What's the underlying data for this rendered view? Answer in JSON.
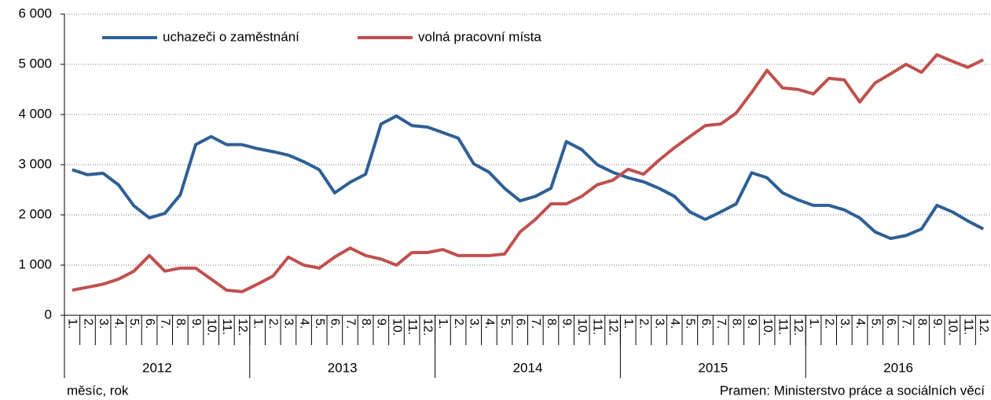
{
  "chart_data": {
    "type": "line",
    "categories": [
      "1.",
      "2.",
      "3.",
      "4.",
      "5.",
      "6.",
      "7.",
      "8.",
      "9.",
      "10.",
      "11.",
      "12.",
      "1.",
      "2.",
      "3.",
      "4.",
      "5.",
      "6.",
      "7.",
      "8.",
      "9.",
      "10.",
      "11.",
      "12.",
      "1.",
      "2.",
      "3.",
      "4.",
      "5.",
      "6.",
      "7.",
      "8.",
      "9.",
      "10.",
      "11.",
      "12.",
      "1.",
      "2.",
      "3.",
      "4.",
      "5.",
      "6.",
      "7.",
      "8.",
      "9.",
      "10.",
      "11.",
      "12.",
      "1.",
      "2.",
      "3.",
      "4.",
      "5.",
      "6.",
      "7.",
      "8.",
      "9.",
      "10.",
      "11.",
      "12."
    ],
    "years": [
      "2012",
      "2013",
      "2014",
      "2015",
      "2016"
    ],
    "series": [
      {
        "name": "uchazeči o zaměstnání",
        "color": "#2e5f95",
        "values": [
          2900,
          2800,
          2830,
          2600,
          2180,
          1940,
          2030,
          2400,
          3400,
          3560,
          3400,
          3400,
          3320,
          3260,
          3190,
          3060,
          2900,
          2440,
          2650,
          2810,
          3810,
          3970,
          3780,
          3750,
          3640,
          3530,
          3020,
          2850,
          2530,
          2280,
          2370,
          2530,
          3460,
          3300,
          3000,
          2850,
          2740,
          2660,
          2530,
          2370,
          2060,
          1910,
          2060,
          2220,
          2840,
          2740,
          2440,
          2300,
          2190,
          2190,
          2100,
          1940,
          1660,
          1530,
          1590,
          1720,
          2190,
          2060,
          1880,
          1720
        ]
      },
      {
        "name": "volná pracovní místa",
        "color": "#c0504d",
        "values": [
          500,
          560,
          620,
          720,
          880,
          1190,
          880,
          940,
          940,
          720,
          500,
          470,
          620,
          780,
          1160,
          1000,
          940,
          1160,
          1340,
          1190,
          1120,
          1000,
          1250,
          1250,
          1310,
          1190,
          1190,
          1190,
          1220,
          1660,
          1910,
          2220,
          2220,
          2370,
          2600,
          2690,
          2910,
          2810,
          3090,
          3340,
          3560,
          3780,
          3810,
          4030,
          4440,
          4880,
          4530,
          4500,
          4410,
          4720,
          4690,
          4250,
          4630,
          4810,
          5000,
          4840,
          5190,
          5060,
          4940,
          5090
        ]
      }
    ],
    "ylim": [
      0,
      6000
    ],
    "yticks": [
      0,
      {
        "value": 1000,
        "label": "1 000"
      },
      {
        "value": 2000,
        "label": "2 000"
      },
      {
        "value": 3000,
        "label": "3 000"
      },
      {
        "value": 4000,
        "label": "4 000"
      },
      {
        "value": 5000,
        "label": "5 000"
      },
      {
        "value": 6000,
        "label": "6 000"
      }
    ],
    "grid": true,
    "xlabel": "měsíc, rok",
    "source": "Pramen: Ministerstvo práce a sociálních věcí"
  }
}
